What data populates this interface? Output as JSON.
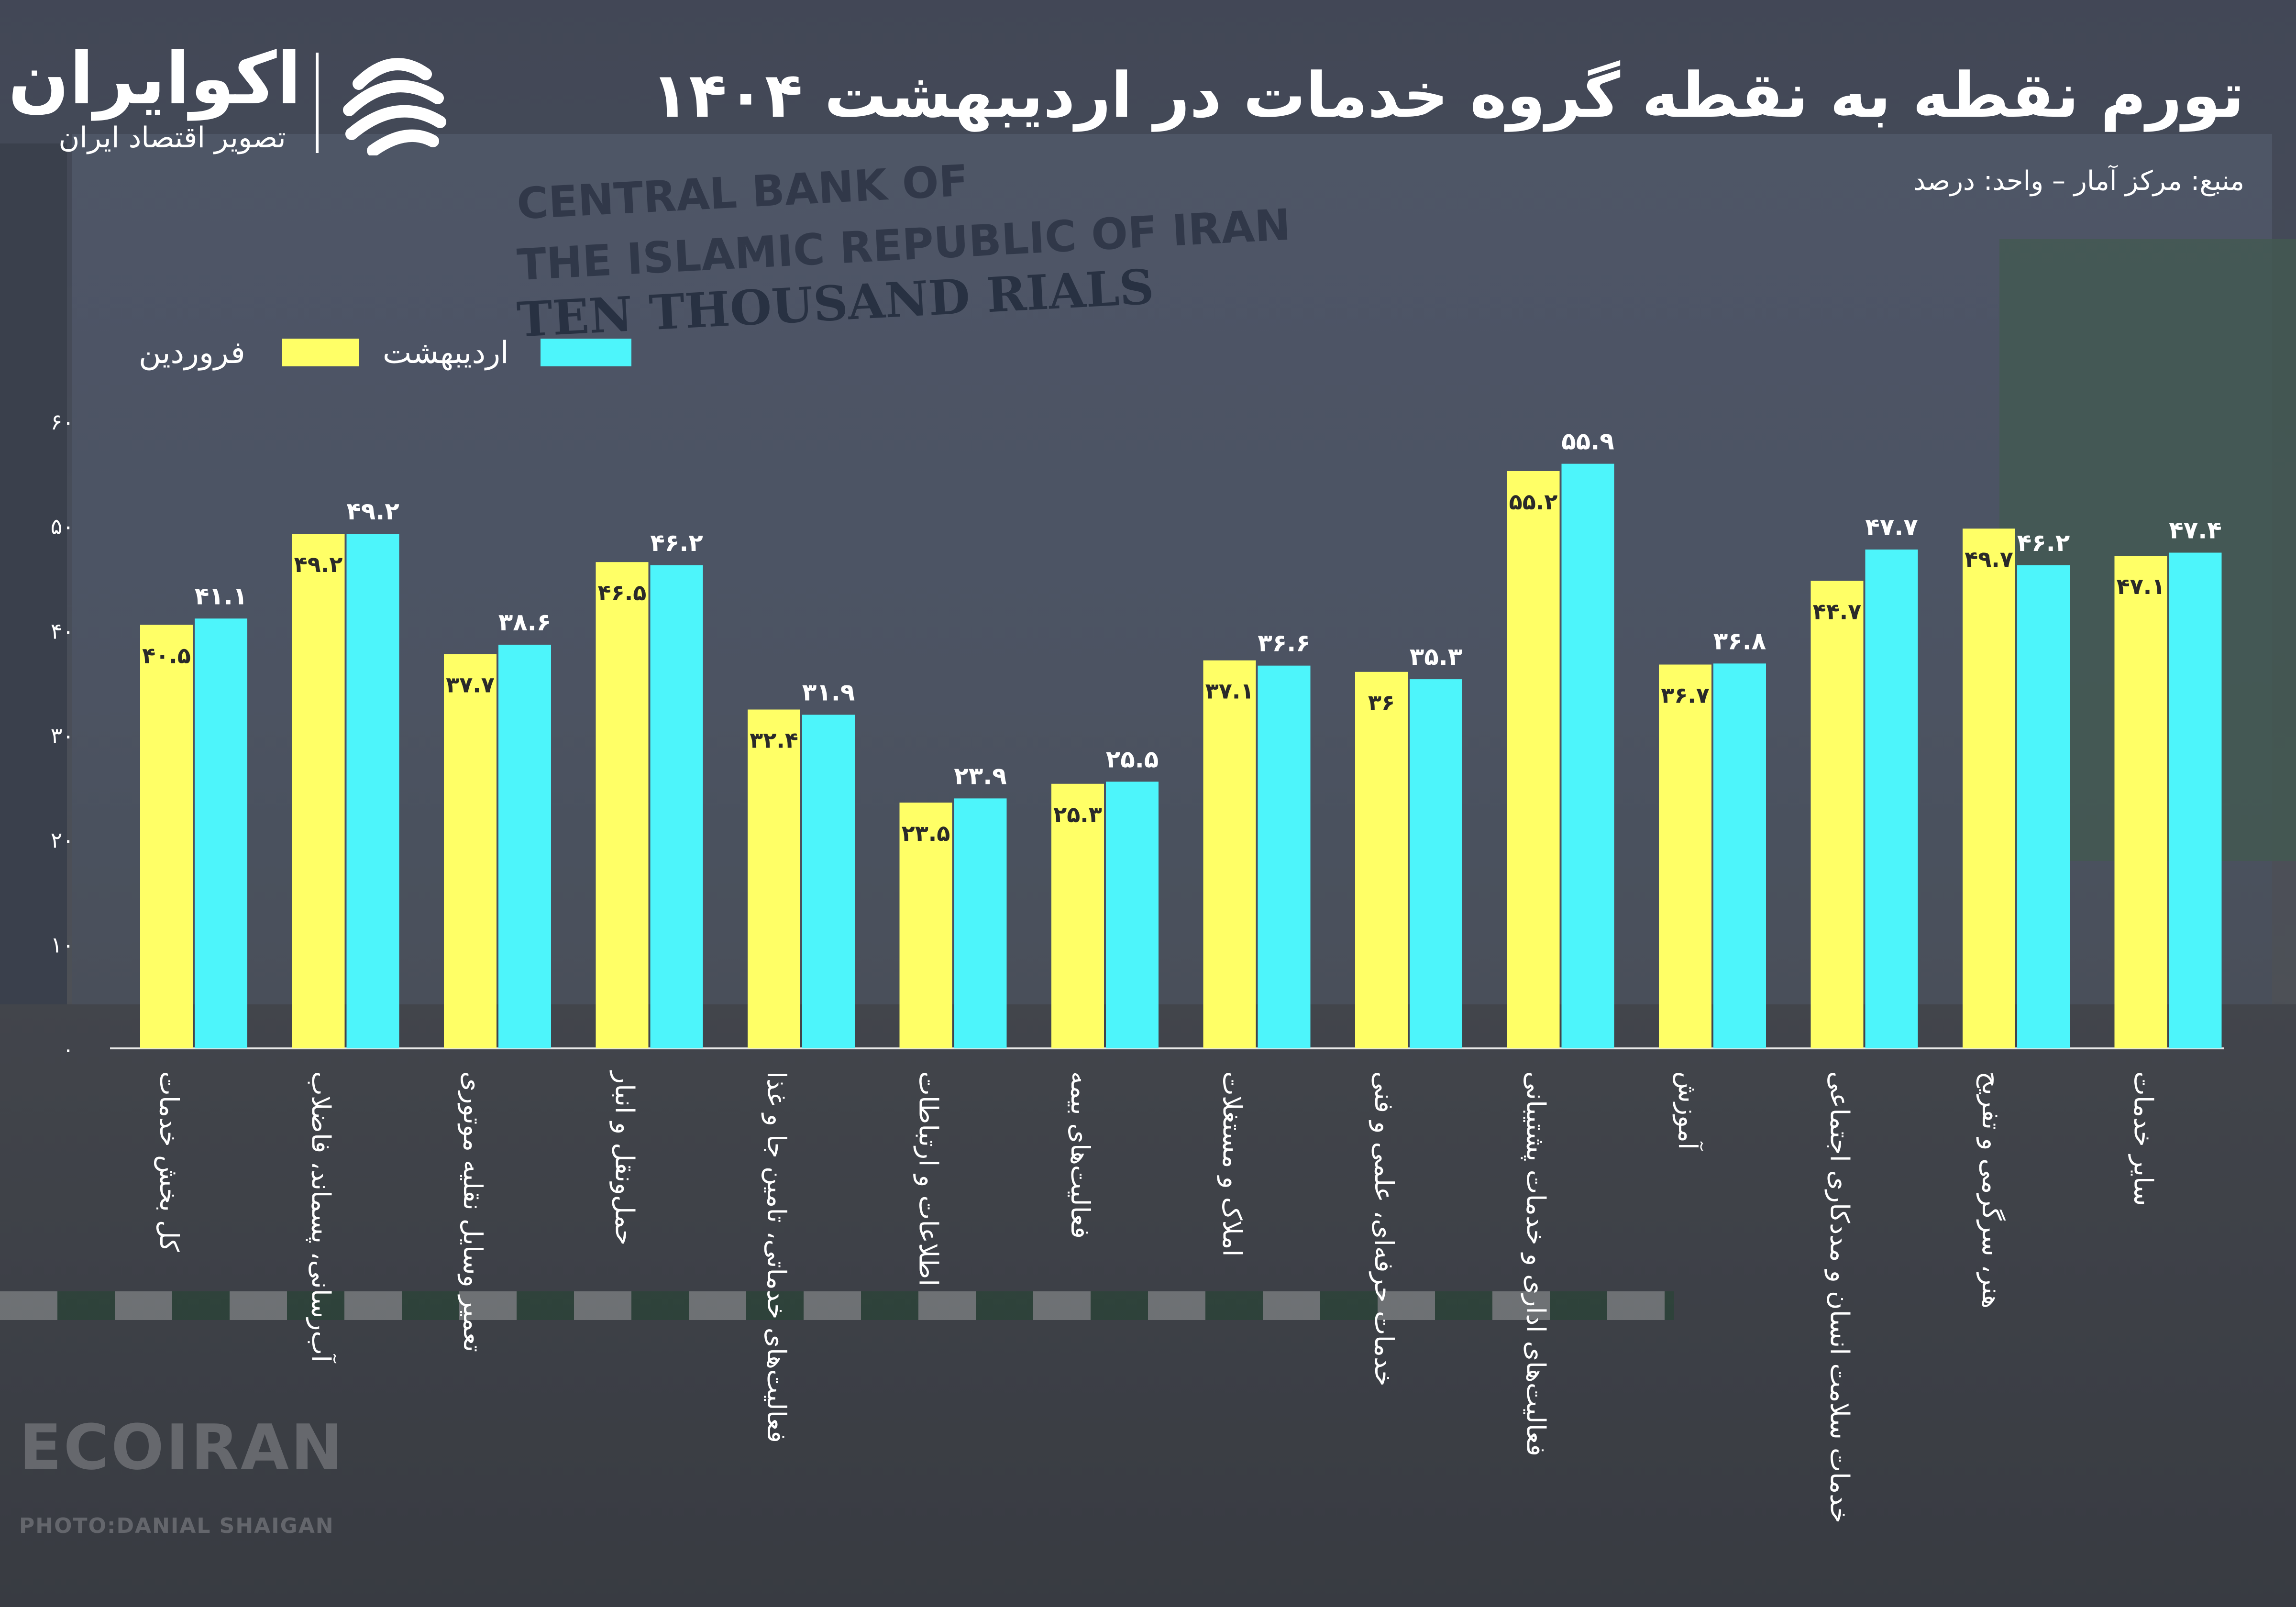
{
  "brand": {
    "name": "اکوایران",
    "tagline": "تصویر اقتصاد ایران"
  },
  "header": {
    "title": "تورم نقطه به نقطه گروه خدمات در اردیبهشت ۱۴۰۴",
    "source": "منبع: مرکز آمار – واحد: درصد"
  },
  "background": {
    "banner_line1": "CENTRAL BANK OF",
    "banner_line2": "THE ISLAMIC REPUBLIC OF IRAN",
    "banner_line3": "TEN THOUSAND RIALS",
    "watermark": "ECOIRAN",
    "watermark_credit": "PHOTO:DANIAL SHAIGAN"
  },
  "colors": {
    "farvardin": "#FFFF66",
    "ordibehesht": "#4DF5FB",
    "text": "#FFFFFF"
  },
  "chart_data": {
    "type": "bar",
    "categories": [
      "کل بخش خدمات",
      "آب‌رسانی، پسماند، فاضلاب",
      "تعمیر وسایل نقلیه موتوری",
      "حمل‌ونقل و انبار",
      "فعالیت‌های خدماتی، تامین جا و غذا",
      "اطلاعات و ارتباطات",
      "فعالیت‌های بیمه",
      "املاک و مستغلات",
      "خدمات حرفه‌ای، علمی و فنی",
      "فعالیت‌های اداری و خدمات پشتیبانی",
      "آموزش",
      "خدمات سلامت انسان و مددکاری اجتماعی",
      "هنر، سرگرمی و تفریح",
      "سایر خدمات"
    ],
    "series": [
      {
        "name": "فروردین",
        "color": "#FFFF66",
        "values": [
          40.5,
          49.2,
          37.7,
          46.5,
          32.4,
          23.5,
          25.3,
          37.1,
          36,
          55.2,
          36.7,
          44.7,
          49.7,
          47.1
        ],
        "labels": [
          "۴۰.۵",
          "۴۹.۲",
          "۳۷.۷",
          "۴۶.۵",
          "۳۲.۴",
          "۲۳.۵",
          "۲۵.۳",
          "۳۷.۱",
          "۳۶",
          "۵۵.۲",
          "۳۶.۷",
          "۴۴.۷",
          "۴۹.۷",
          "۴۷.۱"
        ]
      },
      {
        "name": "اردیبهشت",
        "color": "#4DF5FB",
        "values": [
          41.1,
          49.2,
          38.6,
          46.2,
          31.9,
          23.9,
          25.5,
          36.6,
          35.3,
          55.9,
          36.8,
          47.7,
          46.2,
          47.4
        ],
        "labels": [
          "۴۱.۱",
          "۴۹.۲",
          "۳۸.۶",
          "۴۶.۲",
          "۳۱.۹",
          "۲۳.۹",
          "۲۵.۵",
          "۳۶.۶",
          "۳۵.۳",
          "۵۵.۹",
          "۳۶.۸",
          "۴۷.۷",
          "۴۶.۲",
          "۴۷.۴"
        ]
      }
    ],
    "ylim": [
      0,
      60
    ],
    "yticks": [
      0,
      10,
      20,
      30,
      40,
      50,
      60
    ],
    "ytick_labels": [
      "۰",
      "۱۰",
      "۲۰",
      "۳۰",
      "۴۰",
      "۵۰",
      "۶۰"
    ],
    "legend": "top-left",
    "grid": false
  }
}
